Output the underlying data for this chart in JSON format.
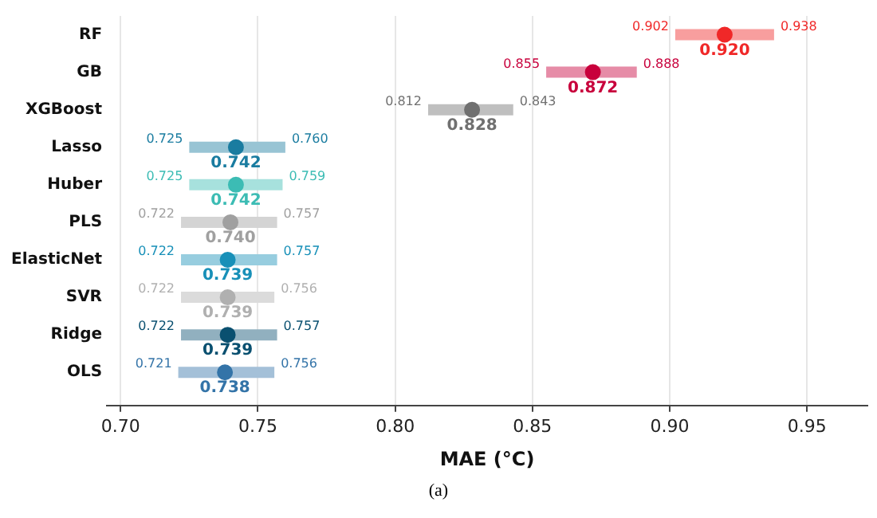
{
  "chart_data": {
    "type": "scatter",
    "orientation": "horizontal",
    "xlabel": "MAE (°C)",
    "categories": [
      "RF",
      "GB",
      "XGBoost",
      "Lasso",
      "Huber",
      "PLS",
      "ElasticNet",
      "SVR",
      "Ridge",
      "OLS"
    ],
    "series": [
      {
        "values": [
          0.92,
          0.872,
          0.828,
          0.742,
          0.742,
          0.74,
          0.739,
          0.739,
          0.739,
          0.738
        ],
        "value_labels": [
          "0.920",
          "0.872",
          "0.828",
          "0.742",
          "0.742",
          "0.740",
          "0.739",
          "0.739",
          "0.739",
          "0.738"
        ],
        "errors": [
          [
            0.902,
            0.938
          ],
          [
            0.855,
            0.888
          ],
          [
            0.812,
            0.843
          ],
          [
            0.725,
            0.76
          ],
          [
            0.725,
            0.759
          ],
          [
            0.722,
            0.757
          ],
          [
            0.722,
            0.757
          ],
          [
            0.722,
            0.756
          ],
          [
            0.722,
            0.757
          ],
          [
            0.721,
            0.756
          ]
        ],
        "colors": [
          "#f02828",
          "#c8003c",
          "#707070",
          "#1a7ca0",
          "#3cbcb4",
          "#a0a0a0",
          "#1890b8",
          "#b0b0b0",
          "#0a5070",
          "#3474a8"
        ]
      }
    ],
    "xlim": [
      0.695,
      0.972
    ],
    "xticks": [
      {
        "value": 0.7,
        "label": "0.70"
      },
      {
        "value": 0.75,
        "label": "0.75"
      },
      {
        "value": 0.8,
        "label": "0.80"
      },
      {
        "value": 0.85,
        "label": "0.85"
      },
      {
        "value": 0.9,
        "label": "0.90"
      },
      {
        "value": 0.95,
        "label": "0.95"
      }
    ],
    "grid": "x",
    "marker": "circle",
    "legend": false,
    "annotations": [
      {
        "text": "0.902",
        "x": 0.902,
        "y": "RF"
      },
      {
        "text": "0.938",
        "x": 0.938,
        "y": "RF"
      },
      {
        "text": "0.855",
        "x": 0.855,
        "y": "GB"
      },
      {
        "text": "0.888",
        "x": 0.888,
        "y": "GB"
      },
      {
        "text": "0.812",
        "x": 0.812,
        "y": "XGBoost"
      },
      {
        "text": "0.843",
        "x": 0.843,
        "y": "XGBoost"
      },
      {
        "text": "0.725",
        "x": 0.725,
        "y": "Lasso"
      },
      {
        "text": "0.760",
        "x": 0.76,
        "y": "Lasso"
      },
      {
        "text": "0.725",
        "x": 0.725,
        "y": "Huber"
      },
      {
        "text": "0.759",
        "x": 0.759,
        "y": "Huber"
      },
      {
        "text": "0.722",
        "x": 0.722,
        "y": "PLS"
      },
      {
        "text": "0.757",
        "x": 0.757,
        "y": "PLS"
      },
      {
        "text": "0.722",
        "x": 0.722,
        "y": "ElasticNet"
      },
      {
        "text": "0.757",
        "x": 0.757,
        "y": "ElasticNet"
      },
      {
        "text": "0.722",
        "x": 0.722,
        "y": "SVR"
      },
      {
        "text": "0.756",
        "x": 0.756,
        "y": "SVR"
      },
      {
        "text": "0.722",
        "x": 0.722,
        "y": "Ridge"
      },
      {
        "text": "0.757",
        "x": 0.757,
        "y": "Ridge"
      },
      {
        "text": "0.721",
        "x": 0.721,
        "y": "OLS"
      },
      {
        "text": "0.756",
        "x": 0.756,
        "y": "OLS"
      },
      "(a)"
    ]
  }
}
